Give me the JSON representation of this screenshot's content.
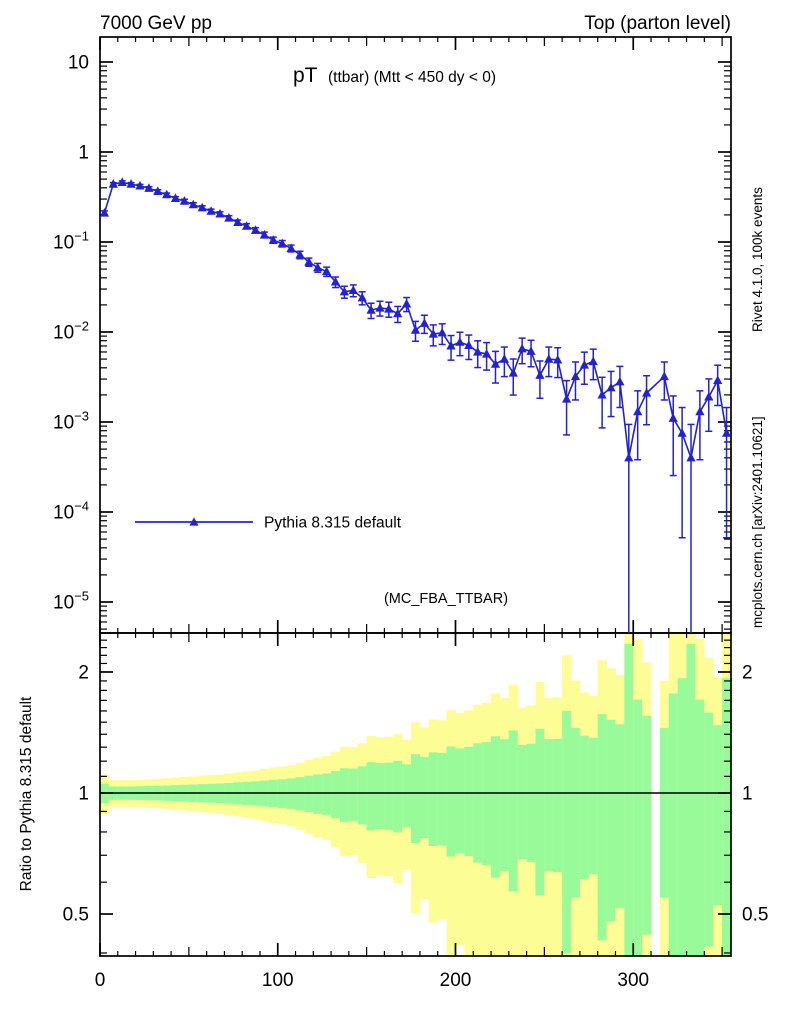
{
  "header": {
    "left": "7000 GeV pp",
    "right": "Top (parton level)"
  },
  "title": {
    "observable": "pT",
    "cuts": "(ttbar) (Mtt < 450 dy < 0)"
  },
  "watermark": "(MC_FBA_TTBAR)",
  "side_notes": {
    "top_right": "Rivet 4.1.0,  100k events",
    "bottom_right": "mcplots.cern.ch [arXiv:2401.10621]"
  },
  "legend": {
    "entries": [
      {
        "label": "Pythia 8.315 default",
        "marker": "filled-triangle",
        "color": "#2222d2"
      }
    ]
  },
  "colors": {
    "series_blue": "#2222d2",
    "band_green": "#99fa99",
    "band_yellow": "#fdfd96",
    "frame": "#000000",
    "side_text_gray": "#8c8c8c",
    "watermark_gray": "#b3b3b3"
  },
  "chart_data": {
    "type": "line",
    "title": "pT (ttbar) (Mtt < 450 dy < 0)",
    "x_range": [
      0,
      355
    ],
    "x_bin_width": 5,
    "xlabel_ticks": [
      0,
      100,
      200,
      300
    ],
    "main_panel": {
      "y_scale": "log",
      "y_range": [
        4.5e-06,
        19
      ],
      "y_major_ticks": [
        10,
        1,
        0.1,
        0.01,
        0.001,
        0.0001,
        1e-05
      ]
    },
    "series": [
      {
        "name": "Pythia 8.315 default",
        "x": [
          2.5,
          7.5,
          12.5,
          17.5,
          22.5,
          27.5,
          32.5,
          37.5,
          42.5,
          47.5,
          52.5,
          57.5,
          62.5,
          67.5,
          72.5,
          77.5,
          82.5,
          87.5,
          92.5,
          97.5,
          102.5,
          107.5,
          112.5,
          117.5,
          122.5,
          127.5,
          132.5,
          137.5,
          142.5,
          147.5,
          152.5,
          157.5,
          162.5,
          167.5,
          172.5,
          177.5,
          182.5,
          187.5,
          192.5,
          197.5,
          202.5,
          207.5,
          212.5,
          217.5,
          222.5,
          227.5,
          232.5,
          237.5,
          242.5,
          247.5,
          252.5,
          257.5,
          262.5,
          267.5,
          272.5,
          277.5,
          282.5,
          287.5,
          292.5,
          297.5,
          302.5,
          307.5,
          312.5,
          317.5,
          322.5,
          327.5,
          332.5,
          337.5,
          342.5,
          347.5,
          352.5
        ],
        "y": [
          0.21,
          0.44,
          0.46,
          0.44,
          0.42,
          0.395,
          0.365,
          0.335,
          0.305,
          0.285,
          0.26,
          0.24,
          0.22,
          0.205,
          0.185,
          0.165,
          0.15,
          0.135,
          0.12,
          0.105,
          0.096,
          0.085,
          0.072,
          0.06,
          0.052,
          0.047,
          0.036,
          0.028,
          0.029,
          0.024,
          0.0175,
          0.0185,
          0.018,
          0.016,
          0.0205,
          0.0105,
          0.0125,
          0.0095,
          0.0098,
          0.007,
          0.0077,
          0.0071,
          0.006,
          0.0057,
          0.0044,
          0.005,
          0.0035,
          0.0065,
          0.0061,
          0.0033,
          0.005,
          0.0049,
          0.0018,
          0.0032,
          0.0043,
          0.0047,
          0.002,
          0.0024,
          0.0028,
          0.0004,
          0.0013,
          0.0021,
          null,
          0.0032,
          0.0011,
          0.00075,
          0.0004,
          0.0013,
          0.0019,
          0.0029,
          0.00075
        ],
        "rel_err": [
          0.056,
          0.038,
          0.038,
          0.038,
          0.039,
          0.041,
          0.042,
          0.044,
          0.046,
          0.048,
          0.05,
          0.052,
          0.054,
          0.056,
          0.059,
          0.063,
          0.066,
          0.069,
          0.074,
          0.079,
          0.082,
          0.087,
          0.095,
          0.104,
          0.112,
          0.118,
          0.134,
          0.152,
          0.15,
          0.165,
          0.193,
          0.187,
          0.19,
          0.202,
          0.178,
          0.249,
          0.228,
          0.262,
          0.258,
          0.305,
          0.291,
          0.303,
          0.329,
          0.338,
          0.384,
          0.361,
          0.431,
          0.316,
          0.326,
          0.444,
          0.361,
          0.364,
          0.601,
          0.451,
          0.389,
          0.372,
          0.57,
          0.521,
          0.482,
          1.35,
          0.707,
          0.556,
          null,
          0.451,
          0.769,
          0.931,
          1.35,
          0.707,
          0.585,
          0.474,
          0.931
        ]
      }
    ],
    "ratio_panel": {
      "ylabel": "Ratio to Pythia 8.315 default",
      "y_scale": "log",
      "y_range": [
        0.39,
        2.5
      ],
      "y_major_ticks": [
        2,
        1,
        0.5
      ],
      "bands": {
        "inner": "green band = 1 sigma stat",
        "outer": "yellow band = 2 sigma stat"
      },
      "reference_line": 1
    }
  }
}
